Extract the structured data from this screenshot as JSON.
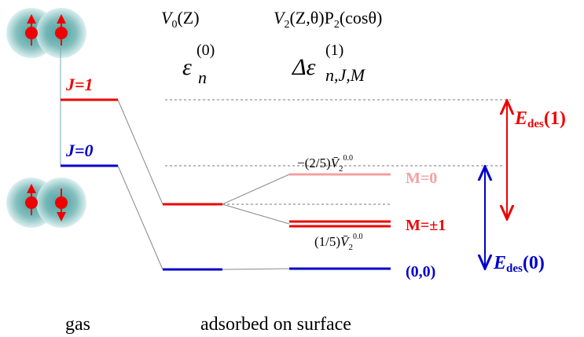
{
  "labels": {
    "v0": [
      "V",
      "0",
      "(Z)"
    ],
    "v2": [
      "V",
      "2",
      "(Z,θ)P",
      "2",
      "(cosθ)"
    ],
    "eps": [
      "ε",
      "(0)",
      "n"
    ],
    "deps": [
      "Δε",
      "(1)",
      "n,J,M"
    ],
    "j1": "J=1",
    "j0": "J=0",
    "m0": "M=0",
    "m1": "M=±1",
    "g00": "(0,0)",
    "coef_m0": [
      "−(2/5)",
      "V̄",
      "2",
      "0.0"
    ],
    "coef_m1": [
      "(1/5)",
      "V̄",
      "2",
      "0.0"
    ],
    "edes1": [
      "E",
      "des",
      "(1)"
    ],
    "edes0": [
      "E",
      "des",
      "(0)"
    ],
    "gas": "gas",
    "adsorbed": "adsorbed on surface"
  }
}
